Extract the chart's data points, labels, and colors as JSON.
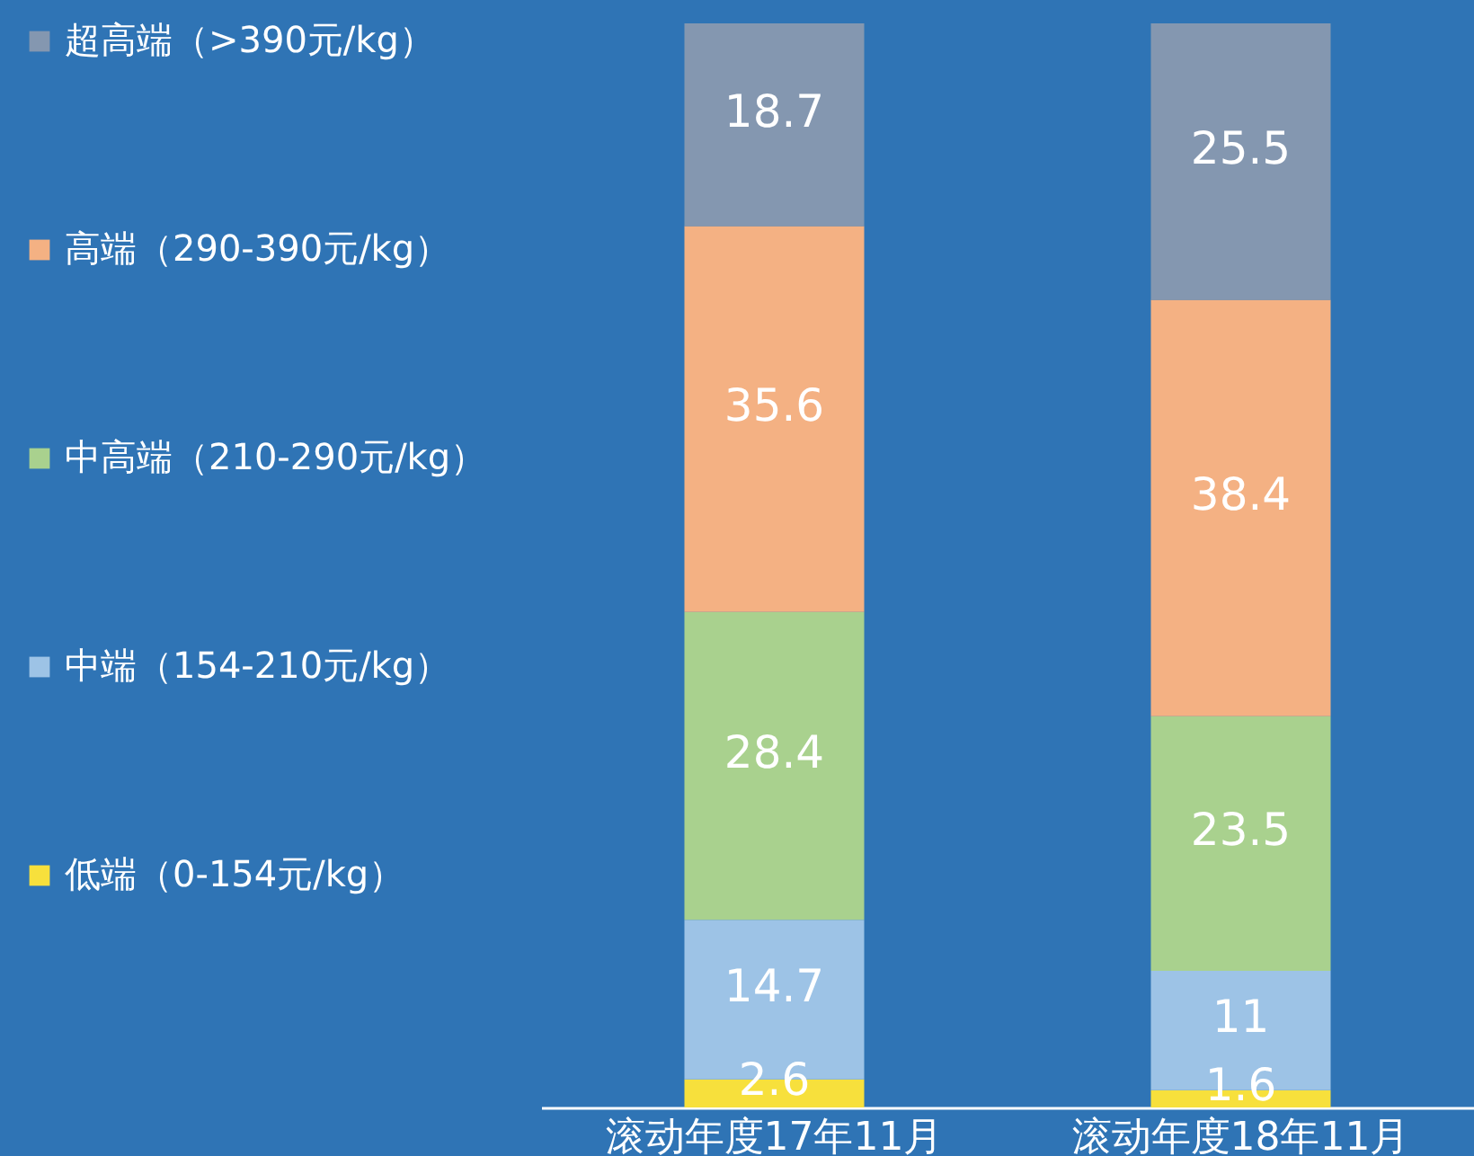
{
  "chart_data": {
    "type": "bar",
    "stacked": true,
    "categories": [
      "滚动年度17年11月",
      "滚动年度18年11月"
    ],
    "series": [
      {
        "name": "低端（0-154元/kg）",
        "color": "#f7e03c",
        "values": [
          2.6,
          1.6
        ]
      },
      {
        "name": "中端（154-210元/kg）",
        "color": "#9dc3e6",
        "values": [
          14.7,
          11
        ]
      },
      {
        "name": "中高端（210-290元/kg）",
        "color": "#a9d18e",
        "values": [
          28.4,
          23.5
        ]
      },
      {
        "name": "高端（290-390元/kg）",
        "color": "#f4b183",
        "values": [
          35.6,
          38.4
        ]
      },
      {
        "name": "超高端（>390元/kg）",
        "color": "#8497b0",
        "values": [
          18.7,
          25.5
        ]
      }
    ],
    "ylim": [
      0,
      100
    ],
    "tick_labels": "x",
    "data_labels": true,
    "legend": "left"
  }
}
